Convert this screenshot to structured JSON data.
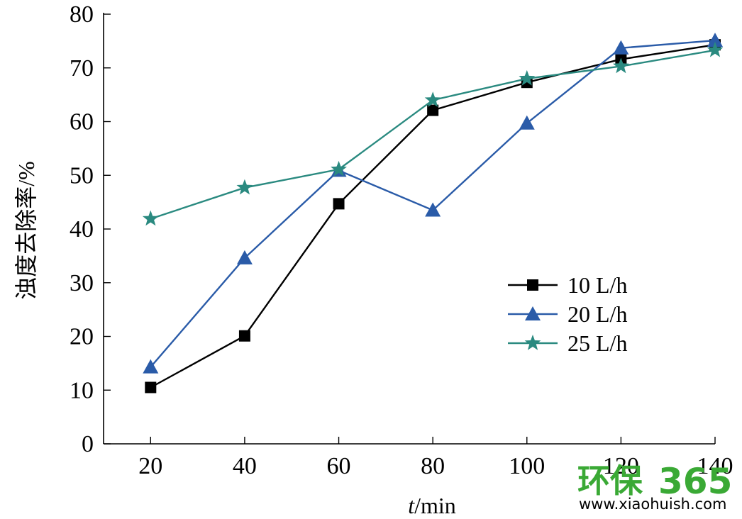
{
  "chart_data": {
    "type": "line",
    "xlabel_italic": "t",
    "xlabel_rest": "/min",
    "ylabel": "浊度去除率/%",
    "x": [
      20,
      40,
      60,
      80,
      100,
      120,
      140
    ],
    "xlim": [
      10,
      140
    ],
    "ylim": [
      0,
      80
    ],
    "xticks": [
      "20",
      "40",
      "60",
      "80",
      "100",
      "120",
      "140"
    ],
    "yticks": [
      "0",
      "10",
      "20",
      "30",
      "40",
      "50",
      "60",
      "70",
      "80"
    ],
    "legend_position": "center-right",
    "series": [
      {
        "name": "10 L/h",
        "marker": "square",
        "color": "#000000",
        "values": [
          10.5,
          20.1,
          44.7,
          62.1,
          67.3,
          71.6,
          74.3
        ]
      },
      {
        "name": "20 L/h",
        "marker": "triangle",
        "color": "#2a5ba8",
        "values": [
          14.3,
          34.6,
          50.9,
          43.5,
          59.7,
          73.7,
          75.1
        ]
      },
      {
        "name": "25 L/h",
        "marker": "star",
        "color": "#2a8a80",
        "values": [
          41.9,
          47.7,
          51.1,
          64.0,
          68.0,
          70.3,
          73.3
        ]
      }
    ]
  },
  "watermark": {
    "brand_cn": "环保",
    "brand_num": "365",
    "url": "www.xiaohuish.com",
    "color": "#3aa935"
  }
}
